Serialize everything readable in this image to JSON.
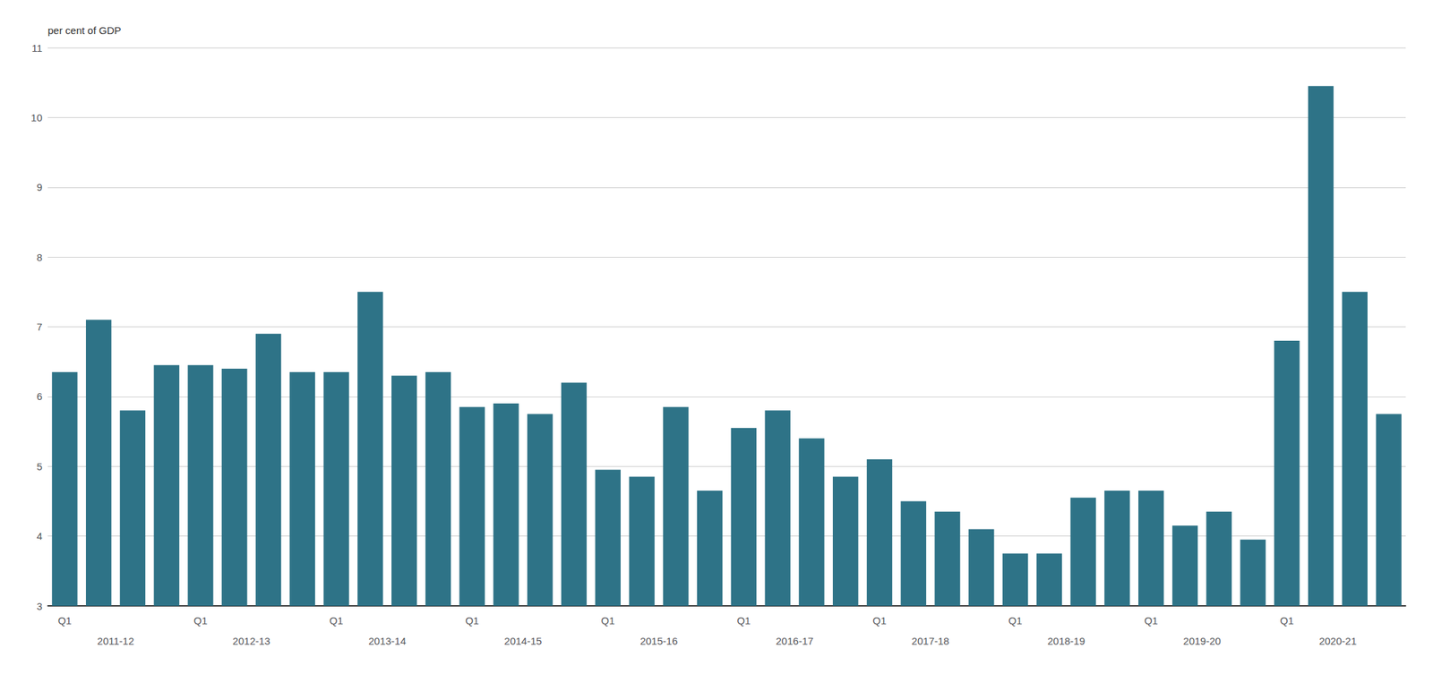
{
  "chart_data": {
    "type": "bar",
    "y_label": "per cent of GDP",
    "categories": [
      "Q1",
      null,
      null,
      null,
      "Q1",
      null,
      null,
      null,
      "Q1",
      null,
      null,
      null,
      "Q1",
      null,
      null,
      null,
      "Q1",
      null,
      null,
      null,
      "Q1",
      null,
      null,
      null,
      "Q1",
      null,
      null,
      null,
      "Q1",
      null,
      null,
      null,
      "Q1",
      null,
      null,
      null,
      "Q1",
      null,
      null,
      null
    ],
    "groups": [
      "2011-12",
      "2012-13",
      "2013-14",
      "2014-15",
      "2015-16",
      "2016-17",
      "2017-18",
      "2018-19",
      "2019-20",
      "2020-21"
    ],
    "values": [
      6.35,
      7.1,
      5.8,
      6.45,
      6.45,
      6.4,
      6.9,
      6.35,
      6.35,
      7.5,
      6.3,
      6.35,
      5.85,
      5.9,
      5.75,
      6.2,
      4.95,
      4.85,
      5.85,
      4.65,
      5.55,
      5.8,
      5.4,
      4.85,
      5.1,
      4.5,
      4.35,
      4.1,
      3.75,
      3.75,
      4.55,
      4.65,
      4.65,
      4.15,
      4.35,
      3.95,
      6.8,
      10.45,
      7.5,
      5.75
    ],
    "color": "#2E7387",
    "ylim": [
      3,
      11
    ],
    "yticks": [
      3,
      4,
      5,
      6,
      7,
      8,
      9,
      10,
      11
    ],
    "grid": true
  }
}
